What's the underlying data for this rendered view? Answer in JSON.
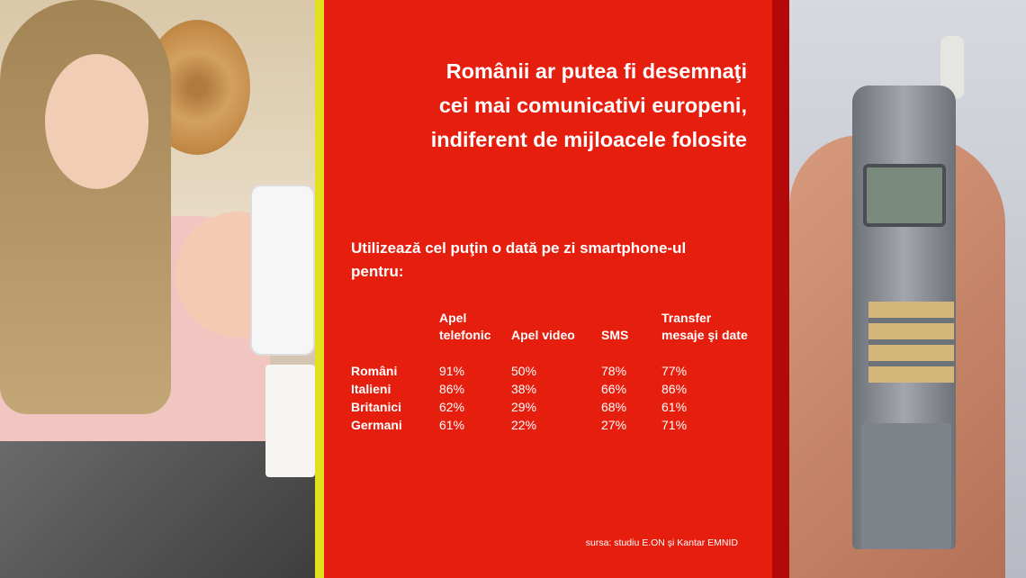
{
  "title": "Românii ar putea fi desemnaţi\ncei mai comunicativi europeni,\nindiferent de mijloacele folosite",
  "subtitle": "Utilizează cel puţin o dată pe zi smartphone-ul pentru:",
  "table": {
    "headers": [
      "",
      "Apel\ntelefonic",
      "Apel video",
      "SMS",
      "Transfer\nmesaje şi date"
    ],
    "rows": [
      {
        "label": "Români",
        "values": [
          "91%",
          "50%",
          "78%",
          "77%"
        ]
      },
      {
        "label": "Italieni",
        "values": [
          "86%",
          "38%",
          "66%",
          "86%"
        ]
      },
      {
        "label": "Britanici",
        "values": [
          "62%",
          "29%",
          "68%",
          "61%"
        ]
      },
      {
        "label": "Germani",
        "values": [
          "61%",
          "22%",
          "27%",
          "71%"
        ]
      }
    ]
  },
  "source": "sursa: studiu E.ON şi Kantar EMNID",
  "colors": {
    "panel": "#e61e0e",
    "stripe": "#e3e01d",
    "dark_strip": "#b4090a",
    "text": "#ffffff"
  }
}
